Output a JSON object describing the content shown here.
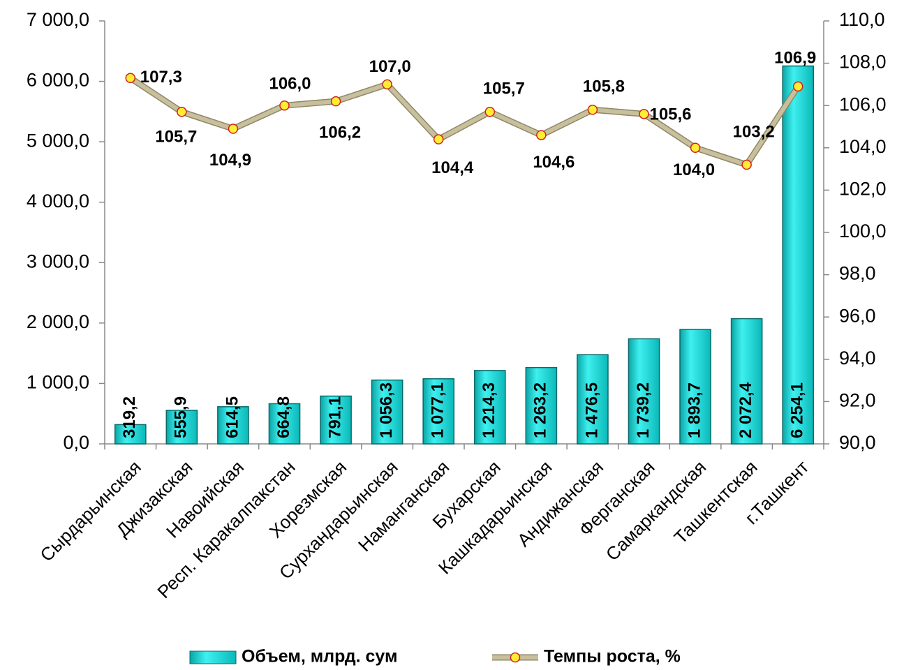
{
  "chart_data": {
    "type": "bar",
    "categories": [
      "Сырдарьинская",
      "Джизакская",
      "Навоийская",
      "Респ. Каракалпакстан",
      "Хорезмская",
      "Сурхандарьинская",
      "Наманганская",
      "Бухарская",
      "Кашкадарьинская",
      "Андижанская",
      "Ферганская",
      "Самаркандская",
      "Ташкентская",
      "г.Ташкент"
    ],
    "series": [
      {
        "name": "Объем, млрд. сум",
        "type": "bar",
        "color": "#1fd3d3",
        "values": [
          319.2,
          555.9,
          614.5,
          664.8,
          791.1,
          1056.3,
          1077.1,
          1214.3,
          1263.2,
          1476.5,
          1739.2,
          1893.7,
          2072.4,
          6254.1
        ],
        "value_labels": [
          "319,2",
          "555,9",
          "614,5",
          "664,8",
          "791,1",
          "1 056,3",
          "1 077,1",
          "1 214,3",
          "1 263,2",
          "1 476,5",
          "1 739,2",
          "1 893,7",
          "2 072,4",
          "6 254,1"
        ]
      },
      {
        "name": "Темпы роста, %",
        "type": "line",
        "axis": "y2",
        "color": "#c8bf9c",
        "values": [
          107.3,
          105.7,
          104.9,
          106.0,
          106.2,
          107.0,
          104.4,
          105.7,
          104.6,
          105.8,
          105.6,
          104.0,
          103.2,
          106.9
        ],
        "value_labels": [
          "107,3",
          "105,7",
          "104,9",
          "106,0",
          "106,2",
          "107,0",
          "104,4",
          "105,7",
          "104,6",
          "105,8",
          "105,6",
          "104,0",
          "103,2",
          "106,9"
        ]
      }
    ],
    "ylim": [
      0,
      7000
    ],
    "yticks": [
      {
        "value": 0,
        "label": "0,0"
      },
      {
        "value": 1000,
        "label": "1 000,0"
      },
      {
        "value": 2000,
        "label": "2 000,0"
      },
      {
        "value": 3000,
        "label": "3 000,0"
      },
      {
        "value": 4000,
        "label": "4 000,0"
      },
      {
        "value": 5000,
        "label": "5 000,0"
      },
      {
        "value": 6000,
        "label": "6 000,0"
      },
      {
        "value": 7000,
        "label": "7 000,0"
      }
    ],
    "y2lim": [
      90,
      110
    ],
    "y2ticks": [
      {
        "value": 90,
        "label": "90,0"
      },
      {
        "value": 92,
        "label": "92,0"
      },
      {
        "value": 94,
        "label": "94,0"
      },
      {
        "value": 96,
        "label": "96,0"
      },
      {
        "value": 98,
        "label": "98,0"
      },
      {
        "value": 100,
        "label": "100,0"
      },
      {
        "value": 102,
        "label": "102,0"
      },
      {
        "value": 104,
        "label": "104,0"
      },
      {
        "value": 106,
        "label": "106,0"
      },
      {
        "value": 108,
        "label": "108,0"
      },
      {
        "value": 110,
        "label": "110,0"
      }
    ],
    "legend": "bottom"
  }
}
